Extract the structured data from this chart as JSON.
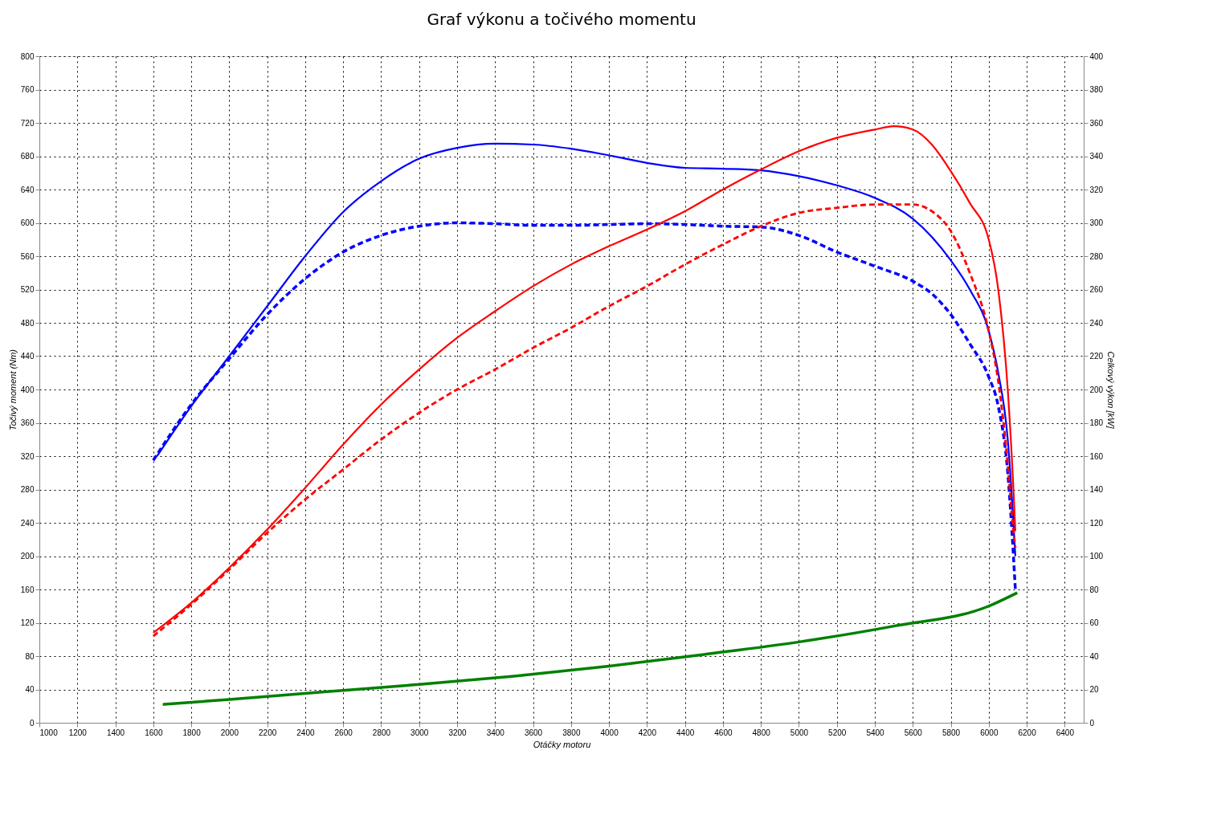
{
  "chart_data": {
    "type": "line",
    "title": "Graf výkonu a točivého momentu",
    "xlabel": "Otáčky motoru",
    "ylabel": "Točivý moment (Nm)",
    "y2label": "Celkový výkon [kW]",
    "xlim": [
      1000,
      6500
    ],
    "xticks": [
      1000,
      1200,
      1400,
      1600,
      1800,
      2000,
      2200,
      2400,
      2600,
      2800,
      3000,
      3200,
      3400,
      3600,
      3800,
      4000,
      4200,
      4400,
      4600,
      4800,
      5000,
      5200,
      5400,
      5600,
      5800,
      6000,
      6200,
      6400
    ],
    "ylim": [
      0,
      800
    ],
    "yticks": [
      0,
      40,
      80,
      120,
      160,
      200,
      240,
      280,
      320,
      360,
      400,
      440,
      480,
      520,
      560,
      600,
      640,
      680,
      720,
      760,
      800
    ],
    "y2lim": [
      0,
      400
    ],
    "y2ticks": [
      0,
      20,
      40,
      60,
      80,
      100,
      120,
      140,
      160,
      180,
      200,
      220,
      240,
      260,
      280,
      300,
      320,
      340,
      360,
      380,
      400
    ],
    "grid": true,
    "legend": false,
    "series": [
      {
        "color": "#0000ff",
        "line_style": "solid",
        "x": [
          1620,
          1800,
          2000,
          2200,
          2400,
          2600,
          2800,
          3000,
          3200,
          3400,
          3600,
          3800,
          4000,
          4200,
          4400,
          4600,
          4800,
          5000,
          5200,
          5400,
          5600,
          5800,
          5900,
          6000,
          6050,
          6100,
          6130,
          6140
        ],
        "values": [
          320,
          380,
          440,
          500,
          560,
          613,
          650,
          677,
          690,
          695,
          694,
          689,
          681,
          672,
          666,
          665,
          663,
          656,
          645,
          630,
          605,
          555,
          520,
          470,
          420,
          340,
          240,
          200
        ]
      },
      {
        "color": "#0000ff",
        "line_style": "dashed",
        "x": [
          1600,
          1800,
          2000,
          2200,
          2400,
          2600,
          2800,
          3000,
          3200,
          3400,
          3600,
          3800,
          4000,
          4200,
          4400,
          4600,
          4800,
          5000,
          5200,
          5400,
          5600,
          5700,
          5800,
          5900,
          6000,
          6050,
          6100,
          6130,
          6140
        ],
        "values": [
          315,
          382,
          437,
          490,
          533,
          565,
          585,
          596,
          600,
          599,
          597,
          597,
          598,
          599,
          598,
          596,
          595,
          585,
          565,
          548,
          530,
          515,
          490,
          455,
          415,
          380,
          300,
          200,
          160
        ]
      },
      {
        "color": "#ff0000",
        "line_style": "solid",
        "axis": "y2",
        "x": [
          1600,
          1800,
          2000,
          2200,
          2400,
          2600,
          2800,
          3000,
          3200,
          3400,
          3600,
          3800,
          4000,
          4200,
          4400,
          4600,
          4800,
          5000,
          5200,
          5400,
          5500,
          5600,
          5700,
          5800,
          5900,
          6000,
          6050,
          6100,
          6130,
          6140
        ],
        "values": [
          54,
          72,
          93,
          116,
          141,
          167,
          191,
          212,
          231,
          247,
          262,
          275,
          286,
          296,
          307,
          320,
          332,
          343,
          351,
          356,
          358,
          356,
          347,
          331,
          312,
          290,
          260,
          200,
          140,
          115
        ]
      },
      {
        "color": "#ff0000",
        "line_style": "dashed",
        "axis": "y2",
        "x": [
          1600,
          1800,
          2000,
          2200,
          2400,
          2600,
          2800,
          3000,
          3200,
          3400,
          3600,
          3800,
          4000,
          4200,
          4400,
          4600,
          4800,
          5000,
          5200,
          5400,
          5600,
          5700,
          5800,
          5900,
          6000,
          6050,
          6100,
          6130,
          6140
        ],
        "values": [
          52,
          71,
          92,
          114,
          134,
          152,
          170,
          186,
          200,
          212,
          225,
          237,
          250,
          262,
          275,
          287,
          298,
          306,
          309,
          311,
          311,
          307,
          295,
          270,
          235,
          205,
          155,
          115,
          105
        ]
      },
      {
        "color": "#008000",
        "line_style": "solid",
        "axis": "y2",
        "x": [
          1650,
          2000,
          2500,
          3000,
          3500,
          4000,
          4500,
          5000,
          5500,
          6000,
          6150
        ],
        "values": [
          11,
          14,
          18.5,
          23,
          28,
          34,
          41,
          48.5,
          58,
          70,
          78
        ]
      }
    ]
  }
}
